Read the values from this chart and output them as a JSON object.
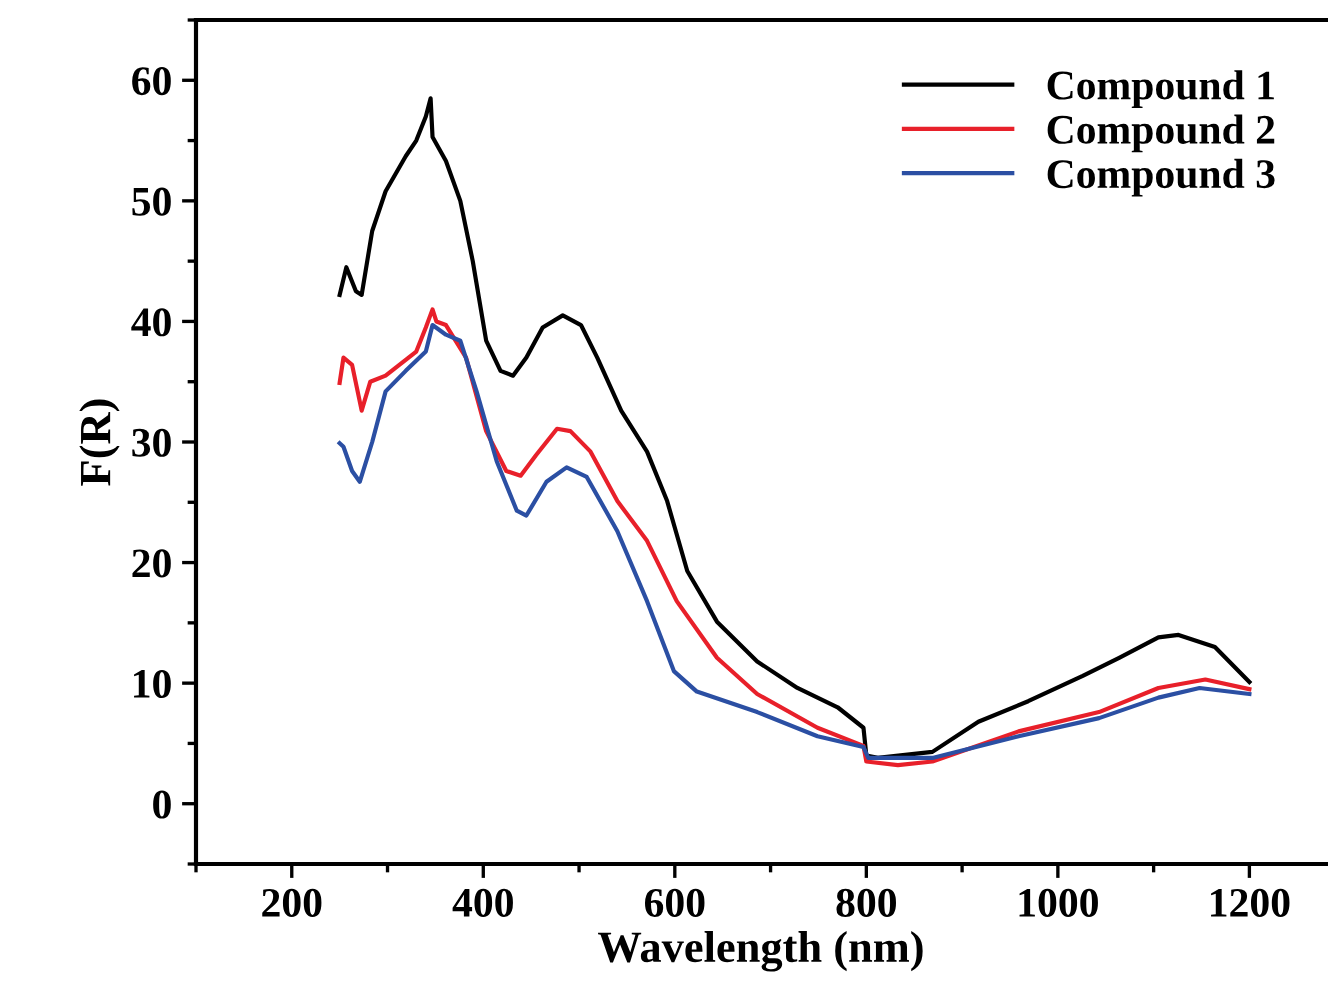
{
  "chart_data": {
    "type": "line",
    "xlabel": "Wavelength (nm)",
    "ylabel": "F(R)",
    "xlim": [
      100,
      1280
    ],
    "xticks": [
      200,
      400,
      600,
      800,
      1000,
      1200
    ],
    "ylim": [
      -5,
      65
    ],
    "yticks": [
      0,
      10,
      20,
      30,
      40,
      50,
      60
    ],
    "legend": "top right",
    "grid": false,
    "marker": "none",
    "line_style": "solid",
    "series": [
      {
        "name": "Compound 1",
        "color": "#000000",
        "x": [
          250,
          257,
          267,
          273,
          284,
          298,
          319,
          330,
          340,
          345,
          347,
          361,
          376,
          389,
          403,
          418,
          431,
          445,
          462,
          483,
          502,
          519,
          544,
          571,
          592,
          613,
          644,
          686,
          728,
          770,
          797,
          800,
          812,
          869,
          917,
          969,
          1026,
          1064,
          1105,
          1126,
          1164,
          1200
        ],
        "values": [
          42.2,
          44.5,
          42.5,
          42.2,
          47.5,
          50.8,
          53.7,
          55,
          57,
          58.5,
          55.3,
          53.3,
          50,
          45,
          38.4,
          35.9,
          35.5,
          37,
          39.5,
          40.5,
          39.7,
          37,
          32.6,
          29.2,
          25.1,
          19.3,
          15.1,
          11.8,
          9.6,
          8.0,
          6.3,
          4.0,
          3.8,
          4.3,
          6.8,
          8.5,
          10.6,
          12.1,
          13.8,
          14.0,
          13.0,
          10.1
        ]
      },
      {
        "name": "Compound 2",
        "color": "#e8202a",
        "x": [
          250,
          254,
          263,
          273,
          282,
          298,
          330,
          340,
          347,
          351,
          361,
          382,
          403,
          424,
          439,
          455,
          477,
          491,
          512,
          540,
          571,
          602,
          644,
          686,
          749,
          797,
          800,
          833,
          869,
          959,
          1043,
          1105,
          1154,
          1200
        ],
        "values": [
          34.9,
          37,
          36.4,
          32.6,
          35,
          35.5,
          37.5,
          39.5,
          41,
          40,
          39.7,
          37,
          30.9,
          27.6,
          27.2,
          28.9,
          31.1,
          30.9,
          29.2,
          25.1,
          21.8,
          16.8,
          12.1,
          9.1,
          6.3,
          4.8,
          3.5,
          3.2,
          3.5,
          6.0,
          7.6,
          9.6,
          10.3,
          9.5
        ]
      },
      {
        "name": "Compound 3",
        "color": "#2b4fa3",
        "x": [
          250,
          254,
          263,
          271,
          284,
          298,
          319,
          340,
          347,
          361,
          376,
          393,
          414,
          435,
          445,
          466,
          487,
          508,
          540,
          571,
          599,
          623,
          686,
          749,
          797,
          802,
          869,
          959,
          1043,
          1105,
          1148,
          1200
        ],
        "values": [
          29.9,
          29.6,
          27.6,
          26.7,
          30,
          34.2,
          35.9,
          37.5,
          39.7,
          38.9,
          38.4,
          34.2,
          28.4,
          24.3,
          23.9,
          26.7,
          27.9,
          27.1,
          22.6,
          16.8,
          11,
          9.3,
          7.6,
          5.6,
          4.7,
          3.8,
          3.8,
          5.6,
          7.1,
          8.8,
          9.6,
          9.1
        ]
      }
    ]
  }
}
